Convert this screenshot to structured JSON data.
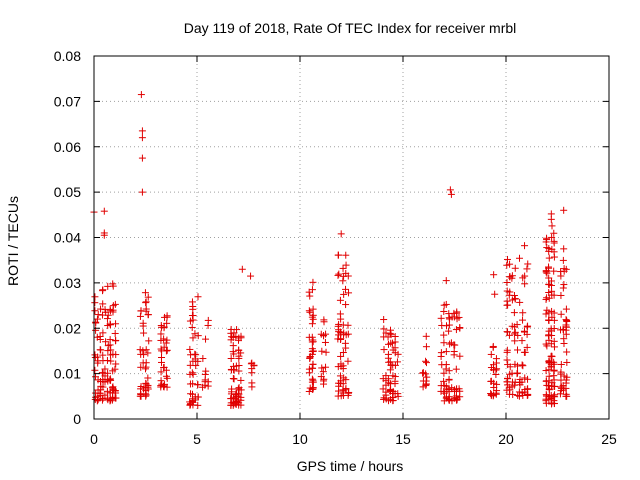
{
  "chart_data": {
    "type": "scatter",
    "title": "Day 119 of 2018, Rate Of TEC Index for receiver mrbl",
    "xlabel": "GPS time / hours",
    "ylabel": "ROTI / TECUs",
    "xlim": [
      0,
      25
    ],
    "ylim": [
      0,
      0.08
    ],
    "xticks": [
      0,
      5,
      10,
      15,
      20,
      25
    ],
    "xtick_labels": [
      "0",
      "5",
      "10",
      "15",
      "20",
      "25"
    ],
    "yticks": [
      0,
      0.01,
      0.02,
      0.03,
      0.04,
      0.05,
      0.06,
      0.07,
      0.08
    ],
    "ytick_labels": [
      "0",
      "0.01",
      "0.02",
      "0.03",
      "0.04",
      "0.05",
      "0.06",
      "0.07",
      "0.08"
    ],
    "grid": true,
    "marker": "+",
    "marker_color": "#e00000",
    "clusters": [
      {
        "x_start": 0.0,
        "x_end": 1.1,
        "y_min": 0.004,
        "y_max": 0.03,
        "n": 120
      },
      {
        "x_start": 2.2,
        "x_end": 2.7,
        "y_min": 0.005,
        "y_max": 0.028,
        "n": 45
      },
      {
        "x_start": 3.2,
        "x_end": 3.6,
        "y_min": 0.007,
        "y_max": 0.027,
        "n": 35
      },
      {
        "x_start": 4.6,
        "x_end": 5.1,
        "y_min": 0.003,
        "y_max": 0.028,
        "n": 45
      },
      {
        "x_start": 5.2,
        "x_end": 5.6,
        "y_min": 0.007,
        "y_max": 0.023,
        "n": 12
      },
      {
        "x_start": 6.6,
        "x_end": 7.2,
        "y_min": 0.003,
        "y_max": 0.022,
        "n": 70
      },
      {
        "x_start": 7.6,
        "x_end": 7.8,
        "y_min": 0.007,
        "y_max": 0.013,
        "n": 8
      },
      {
        "x_start": 10.4,
        "x_end": 10.7,
        "y_min": 0.006,
        "y_max": 0.032,
        "n": 40
      },
      {
        "x_start": 11.0,
        "x_end": 11.3,
        "y_min": 0.007,
        "y_max": 0.028,
        "n": 16
      },
      {
        "x_start": 11.8,
        "x_end": 12.4,
        "y_min": 0.005,
        "y_max": 0.038,
        "n": 65
      },
      {
        "x_start": 14.0,
        "x_end": 14.8,
        "y_min": 0.004,
        "y_max": 0.022,
        "n": 60
      },
      {
        "x_start": 15.9,
        "x_end": 16.2,
        "y_min": 0.007,
        "y_max": 0.022,
        "n": 14
      },
      {
        "x_start": 16.8,
        "x_end": 17.8,
        "y_min": 0.004,
        "y_max": 0.026,
        "n": 75
      },
      {
        "x_start": 19.2,
        "x_end": 19.6,
        "y_min": 0.005,
        "y_max": 0.018,
        "n": 25
      },
      {
        "x_start": 20.0,
        "x_end": 21.1,
        "y_min": 0.005,
        "y_max": 0.036,
        "n": 95
      },
      {
        "x_start": 21.9,
        "x_end": 22.4,
        "y_min": 0.003,
        "y_max": 0.043,
        "n": 110
      },
      {
        "x_start": 22.6,
        "x_end": 23.0,
        "y_min": 0.005,
        "y_max": 0.037,
        "n": 45
      }
    ],
    "outliers": [
      {
        "x": 0.0,
        "y": 0.0456
      },
      {
        "x": 0.5,
        "y": 0.0458
      },
      {
        "x": 0.5,
        "y": 0.0405
      },
      {
        "x": 0.5,
        "y": 0.041
      },
      {
        "x": 2.3,
        "y": 0.0715
      },
      {
        "x": 2.35,
        "y": 0.0635
      },
      {
        "x": 2.35,
        "y": 0.062
      },
      {
        "x": 2.35,
        "y": 0.0575
      },
      {
        "x": 2.35,
        "y": 0.05
      },
      {
        "x": 7.2,
        "y": 0.033
      },
      {
        "x": 7.6,
        "y": 0.0315
      },
      {
        "x": 12.0,
        "y": 0.0408
      },
      {
        "x": 17.1,
        "y": 0.0305
      },
      {
        "x": 17.3,
        "y": 0.0505
      },
      {
        "x": 17.35,
        "y": 0.0495
      },
      {
        "x": 19.4,
        "y": 0.0318
      },
      {
        "x": 19.45,
        "y": 0.0275
      },
      {
        "x": 20.9,
        "y": 0.0382
      },
      {
        "x": 22.2,
        "y": 0.0452
      },
      {
        "x": 22.2,
        "y": 0.044
      },
      {
        "x": 22.8,
        "y": 0.046
      },
      {
        "x": 22.8,
        "y": 0.0375
      }
    ]
  }
}
